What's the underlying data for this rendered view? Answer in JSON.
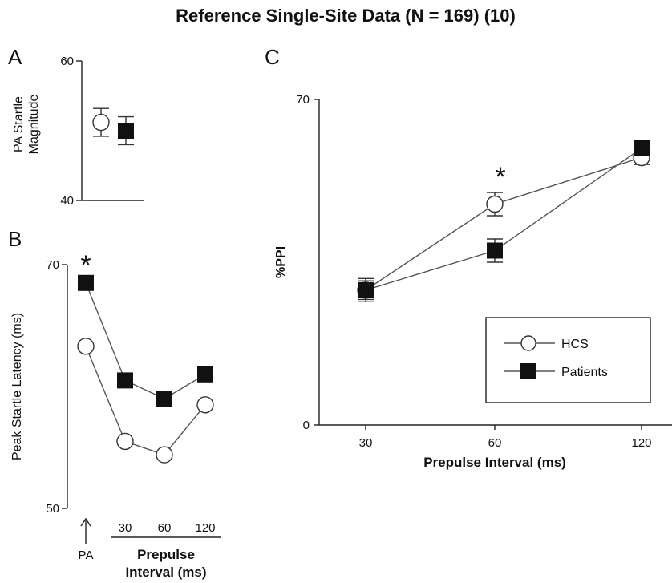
{
  "figure": {
    "title": "Reference Single-Site Data (N = 169) (10)",
    "colors": {
      "hcs_fill": "#ffffff",
      "patients_fill": "#111111",
      "line": "#555555",
      "axis": "#222222"
    }
  },
  "chart_data": [
    {
      "panel": "A",
      "type": "scatter",
      "ylabel_lines": [
        "PA Startle",
        "Magnitude"
      ],
      "ylim": [
        40,
        60
      ],
      "yticks": [
        "40",
        "60"
      ],
      "series": [
        {
          "name": "HCS",
          "marker": "open-circle",
          "values": [
            51.2
          ],
          "err": [
            2.0
          ]
        },
        {
          "name": "Patients",
          "marker": "filled-square",
          "values": [
            50.0
          ],
          "err": [
            2.0
          ]
        }
      ]
    },
    {
      "panel": "B",
      "type": "line",
      "ylabel": "Peak Startle Latency (ms)",
      "ylim": [
        50,
        70
      ],
      "yticks": [
        "50",
        "70"
      ],
      "categories": [
        "PA",
        "30",
        "60",
        "120"
      ],
      "tick_labels": [
        "30",
        "60",
        "120"
      ],
      "pa_label": "PA",
      "xlabel_lines": [
        "Prepulse",
        "Interval (ms)"
      ],
      "annotation": "*",
      "series": [
        {
          "name": "HCS",
          "marker": "open-circle",
          "values": [
            63.3,
            55.5,
            54.4,
            58.5
          ]
        },
        {
          "name": "Patients",
          "marker": "filled-square",
          "values": [
            68.5,
            60.5,
            59.0,
            61.0
          ]
        }
      ]
    },
    {
      "panel": "C",
      "type": "line",
      "ylabel": "%PPI",
      "ylim": [
        0,
        70
      ],
      "yticks": [
        "0",
        "70"
      ],
      "categories": [
        "30",
        "60",
        "120"
      ],
      "xlabel": "Prepulse Interval (ms)",
      "annotation": "*",
      "legend_position": "bottom-right",
      "series": [
        {
          "name": "HCS",
          "marker": "open-circle",
          "values": [
            29.0,
            47.5,
            57.5
          ],
          "err": [
            2.5,
            2.5,
            1.5
          ]
        },
        {
          "name": "Patients",
          "marker": "filled-square",
          "values": [
            29.0,
            37.5,
            59.5
          ],
          "err": [
            2.0,
            2.5,
            1.5
          ]
        }
      ]
    }
  ]
}
